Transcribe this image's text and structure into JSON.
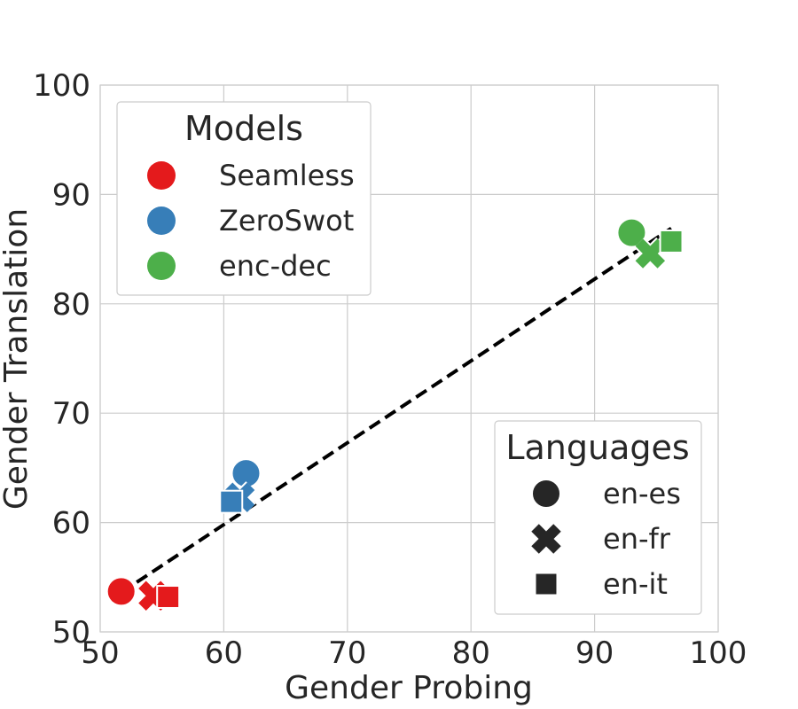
{
  "chart_data": {
    "type": "scatter",
    "xlabel": "Gender Probing",
    "ylabel": "Gender Translation",
    "xlim": [
      50,
      100
    ],
    "ylim": [
      50,
      100
    ],
    "xticks": [
      "50",
      "60",
      "70",
      "80",
      "90",
      "100"
    ],
    "yticks": [
      "50",
      "60",
      "70",
      "80",
      "90",
      "100"
    ],
    "grid": true,
    "models_legend": {
      "title": "Models",
      "placement": "top-left",
      "items": [
        {
          "label": "Seamless",
          "color": "#e41a1c"
        },
        {
          "label": "ZeroSwot",
          "color": "#377eb8"
        },
        {
          "label": "enc-dec",
          "color": "#4daf4a"
        }
      ]
    },
    "languages_legend": {
      "title": "Languages",
      "placement": "bottom-right",
      "items": [
        {
          "label": "en-es",
          "marker": "circle"
        },
        {
          "label": "en-fr",
          "marker": "x"
        },
        {
          "label": "en-it",
          "marker": "square"
        }
      ]
    },
    "points": [
      {
        "model": "Seamless",
        "language": "en-es",
        "x": 51.7,
        "y": 53.7
      },
      {
        "model": "Seamless",
        "language": "en-fr",
        "x": 54.3,
        "y": 53.3
      },
      {
        "model": "Seamless",
        "language": "en-it",
        "x": 55.5,
        "y": 53.2
      },
      {
        "model": "ZeroSwot",
        "language": "en-es",
        "x": 61.8,
        "y": 64.5
      },
      {
        "model": "ZeroSwot",
        "language": "en-fr",
        "x": 61.3,
        "y": 62.3
      },
      {
        "model": "ZeroSwot",
        "language": "en-it",
        "x": 60.6,
        "y": 61.9
      },
      {
        "model": "enc-dec",
        "language": "en-es",
        "x": 93.0,
        "y": 86.5
      },
      {
        "model": "enc-dec",
        "language": "en-fr",
        "x": 94.5,
        "y": 84.6
      },
      {
        "model": "enc-dec",
        "language": "en-it",
        "x": 96.2,
        "y": 85.7
      }
    ],
    "trend_line": {
      "style": "dashed",
      "color": "#000000",
      "x": [
        51.7,
        96.2
      ],
      "y": [
        53.6,
        86.9
      ]
    }
  }
}
